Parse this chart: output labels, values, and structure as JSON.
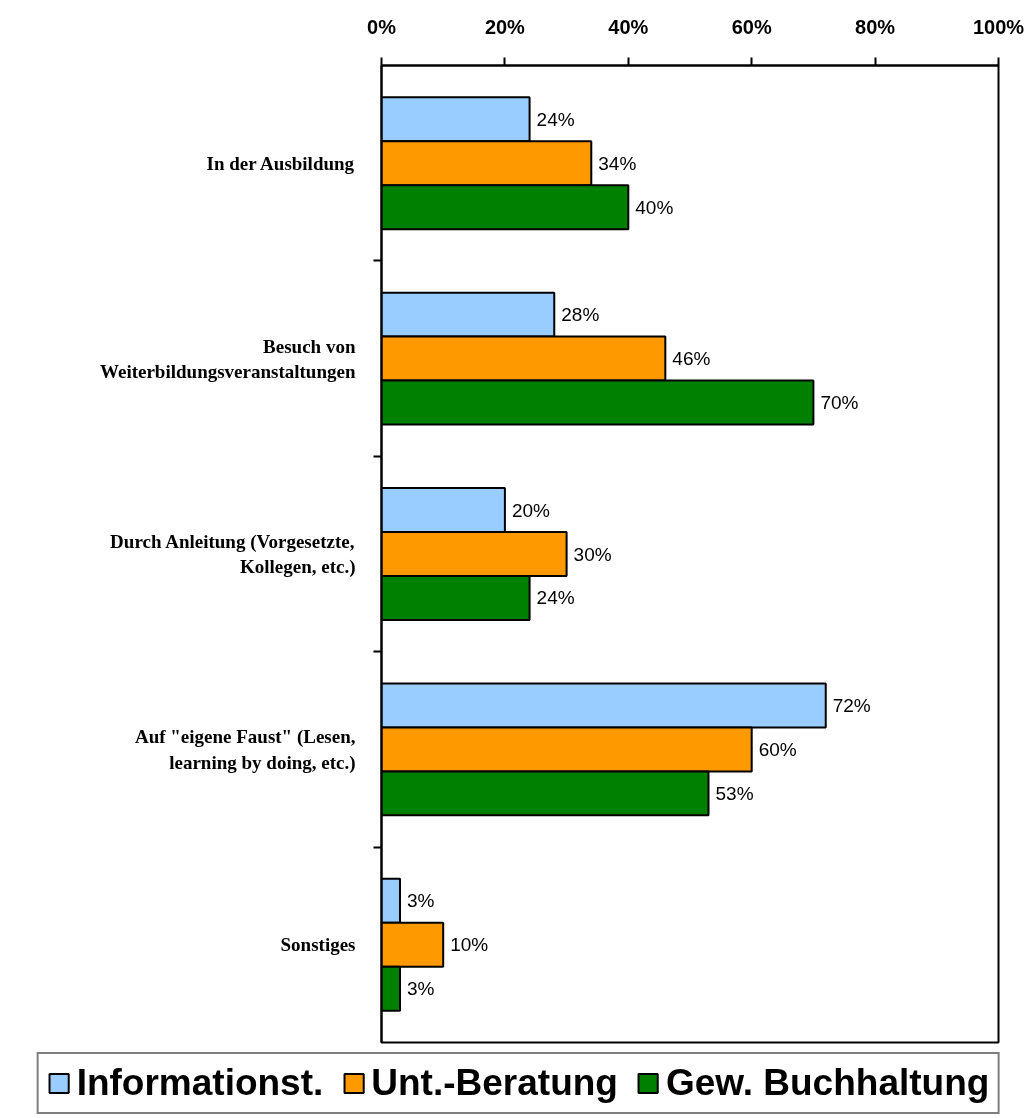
{
  "chart_data": {
    "type": "bar",
    "orientation": "horizontal",
    "categories": [
      "In der Ausbildung",
      "Besuch von\nWeiterbildungsveranstaltungen",
      "Durch Anleitung (Vorgesetzte,\nKollegen, etc.)",
      "Auf \"eigene Faust\" (Lesen,\nlearning by doing, etc.)",
      "Sonstiges"
    ],
    "series": [
      {
        "name": "Informationst.",
        "color": "#99ccff",
        "values": [
          24,
          28,
          20,
          72,
          3
        ],
        "value_labels": [
          "24%",
          "28%",
          "20%",
          "72%",
          "3%"
        ]
      },
      {
        "name": "Unt.-Beratung",
        "color": "#ff9900",
        "values": [
          34,
          46,
          30,
          60,
          10
        ],
        "value_labels": [
          "34%",
          "46%",
          "30%",
          "60%",
          "10%"
        ]
      },
      {
        "name": "Gew. Buchhaltung",
        "color": "#008000",
        "values": [
          40,
          70,
          24,
          53,
          3
        ],
        "value_labels": [
          "40%",
          "70%",
          "24%",
          "53%",
          "3%"
        ]
      }
    ],
    "xlim": [
      0,
      100
    ],
    "xticks": [
      {
        "value": 0,
        "label": "0%"
      },
      {
        "value": 20,
        "label": "20%"
      },
      {
        "value": 40,
        "label": "40%"
      },
      {
        "value": 60,
        "label": "60%"
      },
      {
        "value": 80,
        "label": "80%"
      },
      {
        "value": 100,
        "label": "100%"
      }
    ],
    "grid": false,
    "legend": "bottom"
  }
}
